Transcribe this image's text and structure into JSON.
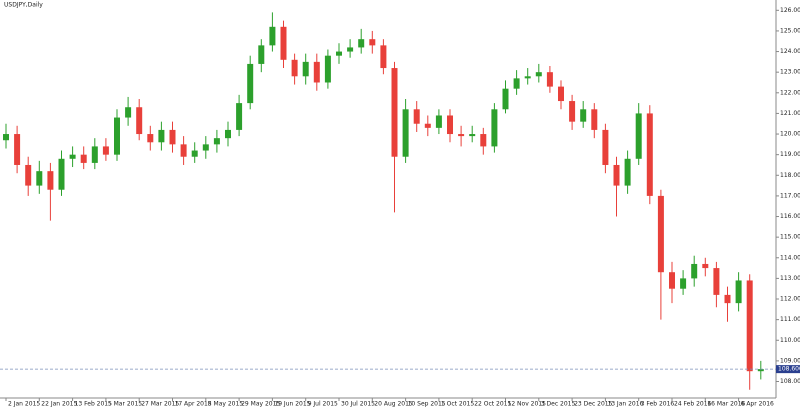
{
  "chart_data": {
    "type": "candlestick",
    "title": "USDJPY,Daily",
    "up_color": "#2ca02c",
    "down_color": "#e8403a",
    "open": [
      119.7,
      120.0,
      118.5,
      117.5,
      118.2,
      117.3,
      118.8,
      119.0,
      118.6,
      119.4,
      119.0,
      120.8,
      121.3,
      120.0,
      119.6,
      120.2,
      119.5,
      118.9,
      119.2,
      119.5,
      119.8,
      120.2,
      121.5,
      123.4,
      124.3,
      125.2,
      123.6,
      122.8,
      123.5,
      122.5,
      123.8,
      124.0,
      124.2,
      124.6,
      124.3,
      123.2,
      118.9,
      121.2,
      120.5,
      120.3,
      120.9,
      120.0,
      119.9,
      120.0,
      119.4,
      121.2,
      122.2,
      122.7,
      122.8,
      123.0,
      122.3,
      121.6,
      120.6,
      121.2,
      120.2,
      118.5,
      117.5,
      118.8,
      121.0,
      117.0,
      113.3,
      112.5,
      113.0,
      113.7,
      113.5,
      112.2,
      111.8,
      112.9,
      108.5
    ],
    "high": [
      120.5,
      120.4,
      118.9,
      118.7,
      118.6,
      119.2,
      119.4,
      119.4,
      119.8,
      119.8,
      121.2,
      121.8,
      121.7,
      120.4,
      120.6,
      120.6,
      119.9,
      119.6,
      119.9,
      120.2,
      120.6,
      121.9,
      123.8,
      124.6,
      125.9,
      125.5,
      123.9,
      123.9,
      123.9,
      124.1,
      124.4,
      124.6,
      125.1,
      125.0,
      124.6,
      123.5,
      121.7,
      121.6,
      120.9,
      121.2,
      121.2,
      120.4,
      120.4,
      120.3,
      121.5,
      122.6,
      123.1,
      123.2,
      123.4,
      123.3,
      122.6,
      121.9,
      121.6,
      121.5,
      120.5,
      118.9,
      119.2,
      121.5,
      121.4,
      117.3,
      113.8,
      113.4,
      114.1,
      114.0,
      113.8,
      112.6,
      113.3,
      113.2,
      109.0
    ],
    "low": [
      119.3,
      118.1,
      117.0,
      117.1,
      115.8,
      117.0,
      118.4,
      118.3,
      118.3,
      118.7,
      118.7,
      120.4,
      119.7,
      119.2,
      119.2,
      119.1,
      118.5,
      118.6,
      118.8,
      119.1,
      119.4,
      119.9,
      121.2,
      123.0,
      124.0,
      123.2,
      122.4,
      122.4,
      122.1,
      122.2,
      123.4,
      123.7,
      123.9,
      123.9,
      122.9,
      116.2,
      118.6,
      120.1,
      119.9,
      120.0,
      119.6,
      119.4,
      119.6,
      119.0,
      119.1,
      121.0,
      121.9,
      122.4,
      122.5,
      122.0,
      121.2,
      120.2,
      120.3,
      119.8,
      118.1,
      116.0,
      117.1,
      118.5,
      116.6,
      111.0,
      111.8,
      112.2,
      112.6,
      113.1,
      111.6,
      110.9,
      111.4,
      107.6,
      108.1
    ],
    "close": [
      120.0,
      118.5,
      117.5,
      118.2,
      117.3,
      118.8,
      119.0,
      118.6,
      119.4,
      119.0,
      120.8,
      121.3,
      120.0,
      119.6,
      120.2,
      119.5,
      118.9,
      119.2,
      119.5,
      119.8,
      120.2,
      121.5,
      123.4,
      124.3,
      125.2,
      123.6,
      122.8,
      123.5,
      122.5,
      123.8,
      124.0,
      124.2,
      124.6,
      124.3,
      123.2,
      118.9,
      121.2,
      120.5,
      120.3,
      120.9,
      120.0,
      119.9,
      120.0,
      119.4,
      121.2,
      122.2,
      122.7,
      122.8,
      123.0,
      122.3,
      121.6,
      120.6,
      121.2,
      120.2,
      118.5,
      117.5,
      118.8,
      121.0,
      117.0,
      113.3,
      112.5,
      113.0,
      113.7,
      113.5,
      112.2,
      111.8,
      112.9,
      108.5,
      108.6
    ],
    "ylim": [
      107.2,
      126.5
    ],
    "yticks": [
      {
        "value": 108,
        "label": "108.000"
      },
      {
        "value": 109,
        "label": "109.000"
      },
      {
        "value": 110,
        "label": "110.000"
      },
      {
        "value": 111,
        "label": "111.000"
      },
      {
        "value": 112,
        "label": "112.000"
      },
      {
        "value": 113,
        "label": "113.000"
      },
      {
        "value": 114,
        "label": "114.000"
      },
      {
        "value": 115,
        "label": "115.000"
      },
      {
        "value": 116,
        "label": "116.000"
      },
      {
        "value": 117,
        "label": "117.000"
      },
      {
        "value": 118,
        "label": "118.000"
      },
      {
        "value": 119,
        "label": "119.000"
      },
      {
        "value": 120,
        "label": "120.000"
      },
      {
        "value": 121,
        "label": "121.000"
      },
      {
        "value": 122,
        "label": "122.000"
      },
      {
        "value": 123,
        "label": "123.000"
      },
      {
        "value": 124,
        "label": "124.000"
      },
      {
        "value": 125,
        "label": "125.000"
      },
      {
        "value": 126,
        "label": "126.000"
      }
    ],
    "xticks": [
      {
        "value": 0,
        "label": "2 Jan 2015"
      },
      {
        "value": 3,
        "label": "22 Jan 2015"
      },
      {
        "value": 6,
        "label": "13 Feb 2015"
      },
      {
        "value": 9,
        "label": "5 Mar 2015"
      },
      {
        "value": 12,
        "label": "27 Mar 2015"
      },
      {
        "value": 15,
        "label": "17 Apr 2015"
      },
      {
        "value": 18,
        "label": "8 May 2015"
      },
      {
        "value": 21,
        "label": "29 May 2015"
      },
      {
        "value": 24,
        "label": "19 Jun 2015"
      },
      {
        "value": 27,
        "label": "9 Jul 2015"
      },
      {
        "value": 30,
        "label": "30 Jul 2015"
      },
      {
        "value": 33,
        "label": "20 Aug 2015"
      },
      {
        "value": 36,
        "label": "10 Sep 2015"
      },
      {
        "value": 39,
        "label": "1 Oct 2015"
      },
      {
        "value": 42,
        "label": "22 Oct 2015"
      },
      {
        "value": 45,
        "label": "12 Nov 2015"
      },
      {
        "value": 48,
        "label": "3 Dec 2015"
      },
      {
        "value": 51,
        "label": "23 Dec 2015"
      },
      {
        "value": 54,
        "label": "13 Jan 2016"
      },
      {
        "value": 57,
        "label": "3 Feb 2016"
      },
      {
        "value": 60,
        "label": "24 Feb 2016"
      },
      {
        "value": 63,
        "label": "16 Mar 2016"
      },
      {
        "value": 66,
        "label": "6 Apr 2016"
      }
    ],
    "current_price": {
      "value": 108.6,
      "label": "108.600"
    }
  }
}
